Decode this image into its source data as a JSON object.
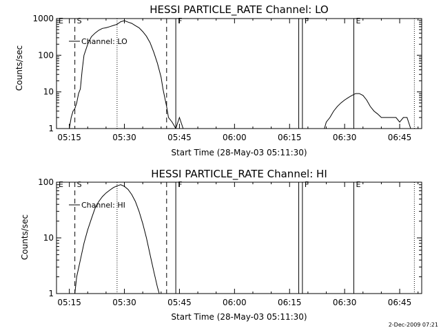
{
  "timestamp": "2-Dec-2009 07:21",
  "chart_data": [
    {
      "type": "line",
      "title": "HESSI PARTICLE_RATE Channel: LO",
      "ylabel": "Counts/sec",
      "xlabel": "Start Time (28-May-03 05:11:30)",
      "yscale": "log",
      "ylim": [
        1,
        1000
      ],
      "xlim": [
        "05:11:30",
        "06:51:00"
      ],
      "xticks": [
        "05:15",
        "05:30",
        "05:45",
        "06:00",
        "06:15",
        "06:30",
        "06:45"
      ],
      "yticks": [
        "1",
        "10",
        "100",
        "1000"
      ],
      "legend": {
        "label": "Channel: LO",
        "placement": "top-left"
      },
      "markers": [
        {
          "label": "E",
          "time": "05:11:30",
          "style": "solid"
        },
        {
          "label": "S",
          "time": "05:16:30",
          "style": "dashed"
        },
        {
          "label": "",
          "time": "05:28:00",
          "style": "dotted"
        },
        {
          "label": "",
          "time": "05:41:30",
          "style": "dashed"
        },
        {
          "label": "F",
          "time": "05:44:00",
          "style": "solid"
        },
        {
          "label": "",
          "time": "06:17:30",
          "style": "solid"
        },
        {
          "label": "F",
          "time": "06:18:30",
          "style": "solid"
        },
        {
          "label": "E",
          "time": "06:32:30",
          "style": "solid"
        },
        {
          "label": "",
          "time": "06:49:00",
          "style": "dotted"
        }
      ],
      "series": [
        {
          "name": "Channel: LO",
          "points": [
            [
              "05:15:00",
              1
            ],
            [
              "05:15:30",
              2
            ],
            [
              "05:16:00",
              3
            ],
            [
              "05:16:30",
              3.5
            ],
            [
              "05:17:00",
              5
            ],
            [
              "05:17:30",
              9
            ],
            [
              "05:18:00",
              12
            ],
            [
              "05:18:30",
              40
            ],
            [
              "05:19:00",
              100
            ],
            [
              "05:20:00",
              200
            ],
            [
              "05:21:00",
              320
            ],
            [
              "05:22:00",
              400
            ],
            [
              "05:23:00",
              480
            ],
            [
              "05:24:00",
              540
            ],
            [
              "05:25:00",
              560
            ],
            [
              "05:26:00",
              600
            ],
            [
              "05:27:00",
              650
            ],
            [
              "05:28:00",
              700
            ],
            [
              "05:29:00",
              820
            ],
            [
              "05:30:00",
              880
            ],
            [
              "05:31:00",
              800
            ],
            [
              "05:32:00",
              740
            ],
            [
              "05:33:00",
              640
            ],
            [
              "05:34:00",
              560
            ],
            [
              "05:35:00",
              440
            ],
            [
              "05:36:00",
              330
            ],
            [
              "05:37:00",
              220
            ],
            [
              "05:38:00",
              120
            ],
            [
              "05:39:00",
              60
            ],
            [
              "05:40:00",
              25
            ],
            [
              "05:40:30",
              12
            ],
            [
              "05:41:00",
              7
            ],
            [
              "05:41:30",
              4
            ],
            [
              "05:42:00",
              2
            ],
            [
              "05:43:00",
              1.5
            ],
            [
              "05:44:00",
              1
            ],
            [
              "05:45:00",
              2
            ],
            [
              "05:46:00",
              1
            ],
            [
              "06:24:30",
              1
            ],
            [
              "06:25:00",
              1.5
            ],
            [
              "06:26:00",
              2
            ],
            [
              "06:27:00",
              3
            ],
            [
              "06:28:00",
              4
            ],
            [
              "06:29:00",
              5
            ],
            [
              "06:30:00",
              6
            ],
            [
              "06:31:00",
              7
            ],
            [
              "06:32:00",
              8
            ],
            [
              "06:33:00",
              9
            ],
            [
              "06:34:00",
              9
            ],
            [
              "06:35:00",
              8
            ],
            [
              "06:36:00",
              6
            ],
            [
              "06:37:00",
              4
            ],
            [
              "06:38:00",
              3
            ],
            [
              "06:39:00",
              2.5
            ],
            [
              "06:40:00",
              2
            ],
            [
              "06:41:00",
              2
            ],
            [
              "06:42:00",
              2
            ],
            [
              "06:43:00",
              2
            ],
            [
              "06:44:00",
              2
            ],
            [
              "06:45:00",
              1.5
            ],
            [
              "06:46:00",
              2
            ],
            [
              "06:47:00",
              2
            ],
            [
              "06:48:00",
              1
            ]
          ]
        }
      ]
    },
    {
      "type": "line",
      "title": "HESSI PARTICLE_RATE Channel: HI",
      "ylabel": "Counts/sec",
      "xlabel": "Start Time (28-May-03 05:11:30)",
      "yscale": "log",
      "ylim": [
        1,
        100
      ],
      "xlim": [
        "05:11:30",
        "06:51:00"
      ],
      "xticks": [
        "05:15",
        "05:30",
        "05:45",
        "06:00",
        "06:15",
        "06:30",
        "06:45"
      ],
      "yticks": [
        "1",
        "10",
        "100"
      ],
      "legend": {
        "label": "Channel: HI",
        "placement": "top-left"
      },
      "markers": [
        {
          "label": "E",
          "time": "05:11:30",
          "style": "solid"
        },
        {
          "label": "S",
          "time": "05:16:30",
          "style": "dashed"
        },
        {
          "label": "",
          "time": "05:28:00",
          "style": "dotted"
        },
        {
          "label": "",
          "time": "05:41:30",
          "style": "dashed"
        },
        {
          "label": "F",
          "time": "05:44:00",
          "style": "solid"
        },
        {
          "label": "",
          "time": "06:17:30",
          "style": "solid"
        },
        {
          "label": "F",
          "time": "06:18:30",
          "style": "solid"
        },
        {
          "label": "E",
          "time": "06:32:30",
          "style": "solid"
        },
        {
          "label": "",
          "time": "06:49:00",
          "style": "dotted"
        }
      ],
      "series": [
        {
          "name": "Channel: HI",
          "points": [
            [
              "05:16:30",
              1
            ],
            [
              "05:17:00",
              2
            ],
            [
              "05:18:00",
              4
            ],
            [
              "05:19:00",
              8
            ],
            [
              "05:20:00",
              14
            ],
            [
              "05:21:00",
              22
            ],
            [
              "05:22:00",
              34
            ],
            [
              "05:23:00",
              45
            ],
            [
              "05:24:00",
              55
            ],
            [
              "05:25:00",
              64
            ],
            [
              "05:26:00",
              72
            ],
            [
              "05:27:00",
              80
            ],
            [
              "05:28:00",
              86
            ],
            [
              "05:29:00",
              90
            ],
            [
              "05:30:00",
              84
            ],
            [
              "05:31:00",
              74
            ],
            [
              "05:32:00",
              60
            ],
            [
              "05:33:00",
              45
            ],
            [
              "05:34:00",
              30
            ],
            [
              "05:35:00",
              18
            ],
            [
              "05:36:00",
              10
            ],
            [
              "05:37:00",
              5
            ],
            [
              "05:38:00",
              2.5
            ],
            [
              "05:39:00",
              1.3
            ],
            [
              "05:39:30",
              1
            ]
          ]
        }
      ]
    }
  ]
}
